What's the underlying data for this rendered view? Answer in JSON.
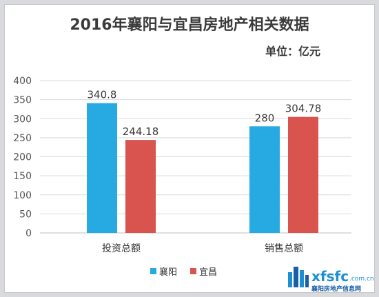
{
  "chart_data": {
    "type": "bar",
    "title": "2016年襄阳与宜昌房地产相关数据",
    "unit": "单位：亿元",
    "categories": [
      "投资总额",
      "销售总额"
    ],
    "series": [
      {
        "name": "襄阳",
        "color": "#27aae1",
        "values": [
          340.8,
          280
        ]
      },
      {
        "name": "宜昌",
        "color": "#d9534f",
        "values": [
          244.18,
          304.78
        ]
      }
    ],
    "data_labels": [
      [
        "340.8",
        "244.18"
      ],
      [
        "280",
        "304.78"
      ]
    ],
    "ylim": [
      0,
      400
    ],
    "yticks": [
      "0",
      "50",
      "100",
      "150",
      "200",
      "250",
      "300",
      "350",
      "400"
    ],
    "grid": true,
    "legend_position": "bottom"
  },
  "watermark": {
    "brand": "xfsfc",
    "domain": ".com.cn",
    "subtitle": "襄阳房地产信息网"
  }
}
